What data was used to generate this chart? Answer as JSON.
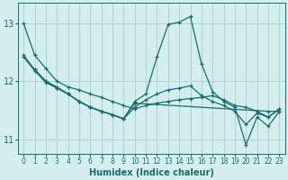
{
  "xlabel": "Humidex (Indice chaleur)",
  "bg_color": "#d4eeee",
  "grid_color": "#aacfcf",
  "line_color": "#1a6b6b",
  "marker": "+",
  "xlim": [
    -0.5,
    23.5
  ],
  "ylim": [
    10.75,
    13.35
  ],
  "yticks": [
    11,
    12,
    13
  ],
  "xticks": [
    0,
    1,
    2,
    3,
    4,
    5,
    6,
    7,
    8,
    9,
    10,
    11,
    12,
    13,
    14,
    15,
    16,
    17,
    18,
    19,
    20,
    21,
    22,
    23
  ],
  "lines": [
    {
      "x": [
        0,
        1,
        2,
        3,
        4,
        5,
        6,
        7,
        8,
        9,
        10,
        11,
        12,
        13,
        14,
        15,
        16,
        17,
        18,
        19,
        20,
        21,
        22,
        23
      ],
      "y": [
        13.0,
        12.45,
        12.22,
        12.0,
        11.9,
        11.85,
        11.78,
        11.72,
        11.65,
        11.58,
        11.52,
        11.58,
        11.62,
        11.65,
        11.68,
        11.7,
        11.72,
        11.75,
        11.68,
        11.58,
        11.55,
        11.48,
        11.38,
        11.52
      ]
    },
    {
      "x": [
        0,
        1,
        2,
        3,
        4,
        5,
        6,
        7,
        8,
        9,
        10,
        11,
        12,
        13,
        14,
        15,
        16,
        17,
        18,
        19,
        20,
        21,
        22,
        23
      ],
      "y": [
        12.45,
        12.2,
        12.0,
        11.88,
        11.78,
        11.65,
        11.55,
        11.48,
        11.42,
        11.35,
        11.65,
        11.78,
        12.42,
        12.98,
        13.02,
        13.12,
        12.3,
        11.82,
        11.65,
        11.55,
        10.9,
        11.38,
        11.22,
        11.48
      ]
    },
    {
      "x": [
        1,
        2,
        3,
        4,
        5,
        6,
        7,
        8,
        9,
        10,
        22,
        23
      ],
      "y": [
        12.2,
        12.0,
        11.9,
        11.78,
        11.65,
        11.55,
        11.48,
        11.42,
        11.35,
        11.62,
        11.48,
        11.48
      ]
    },
    {
      "x": [
        0,
        1,
        2,
        3,
        4,
        5,
        6,
        7,
        8,
        9,
        10,
        11,
        12,
        13,
        14,
        15,
        16,
        17,
        18,
        19,
        20,
        21,
        22,
        23
      ],
      "y": [
        12.42,
        12.18,
        11.98,
        11.88,
        11.78,
        11.65,
        11.55,
        11.48,
        11.42,
        11.35,
        11.55,
        11.68,
        11.78,
        11.85,
        11.88,
        11.92,
        11.75,
        11.65,
        11.58,
        11.48,
        11.25,
        11.45,
        11.38,
        11.52
      ]
    }
  ]
}
